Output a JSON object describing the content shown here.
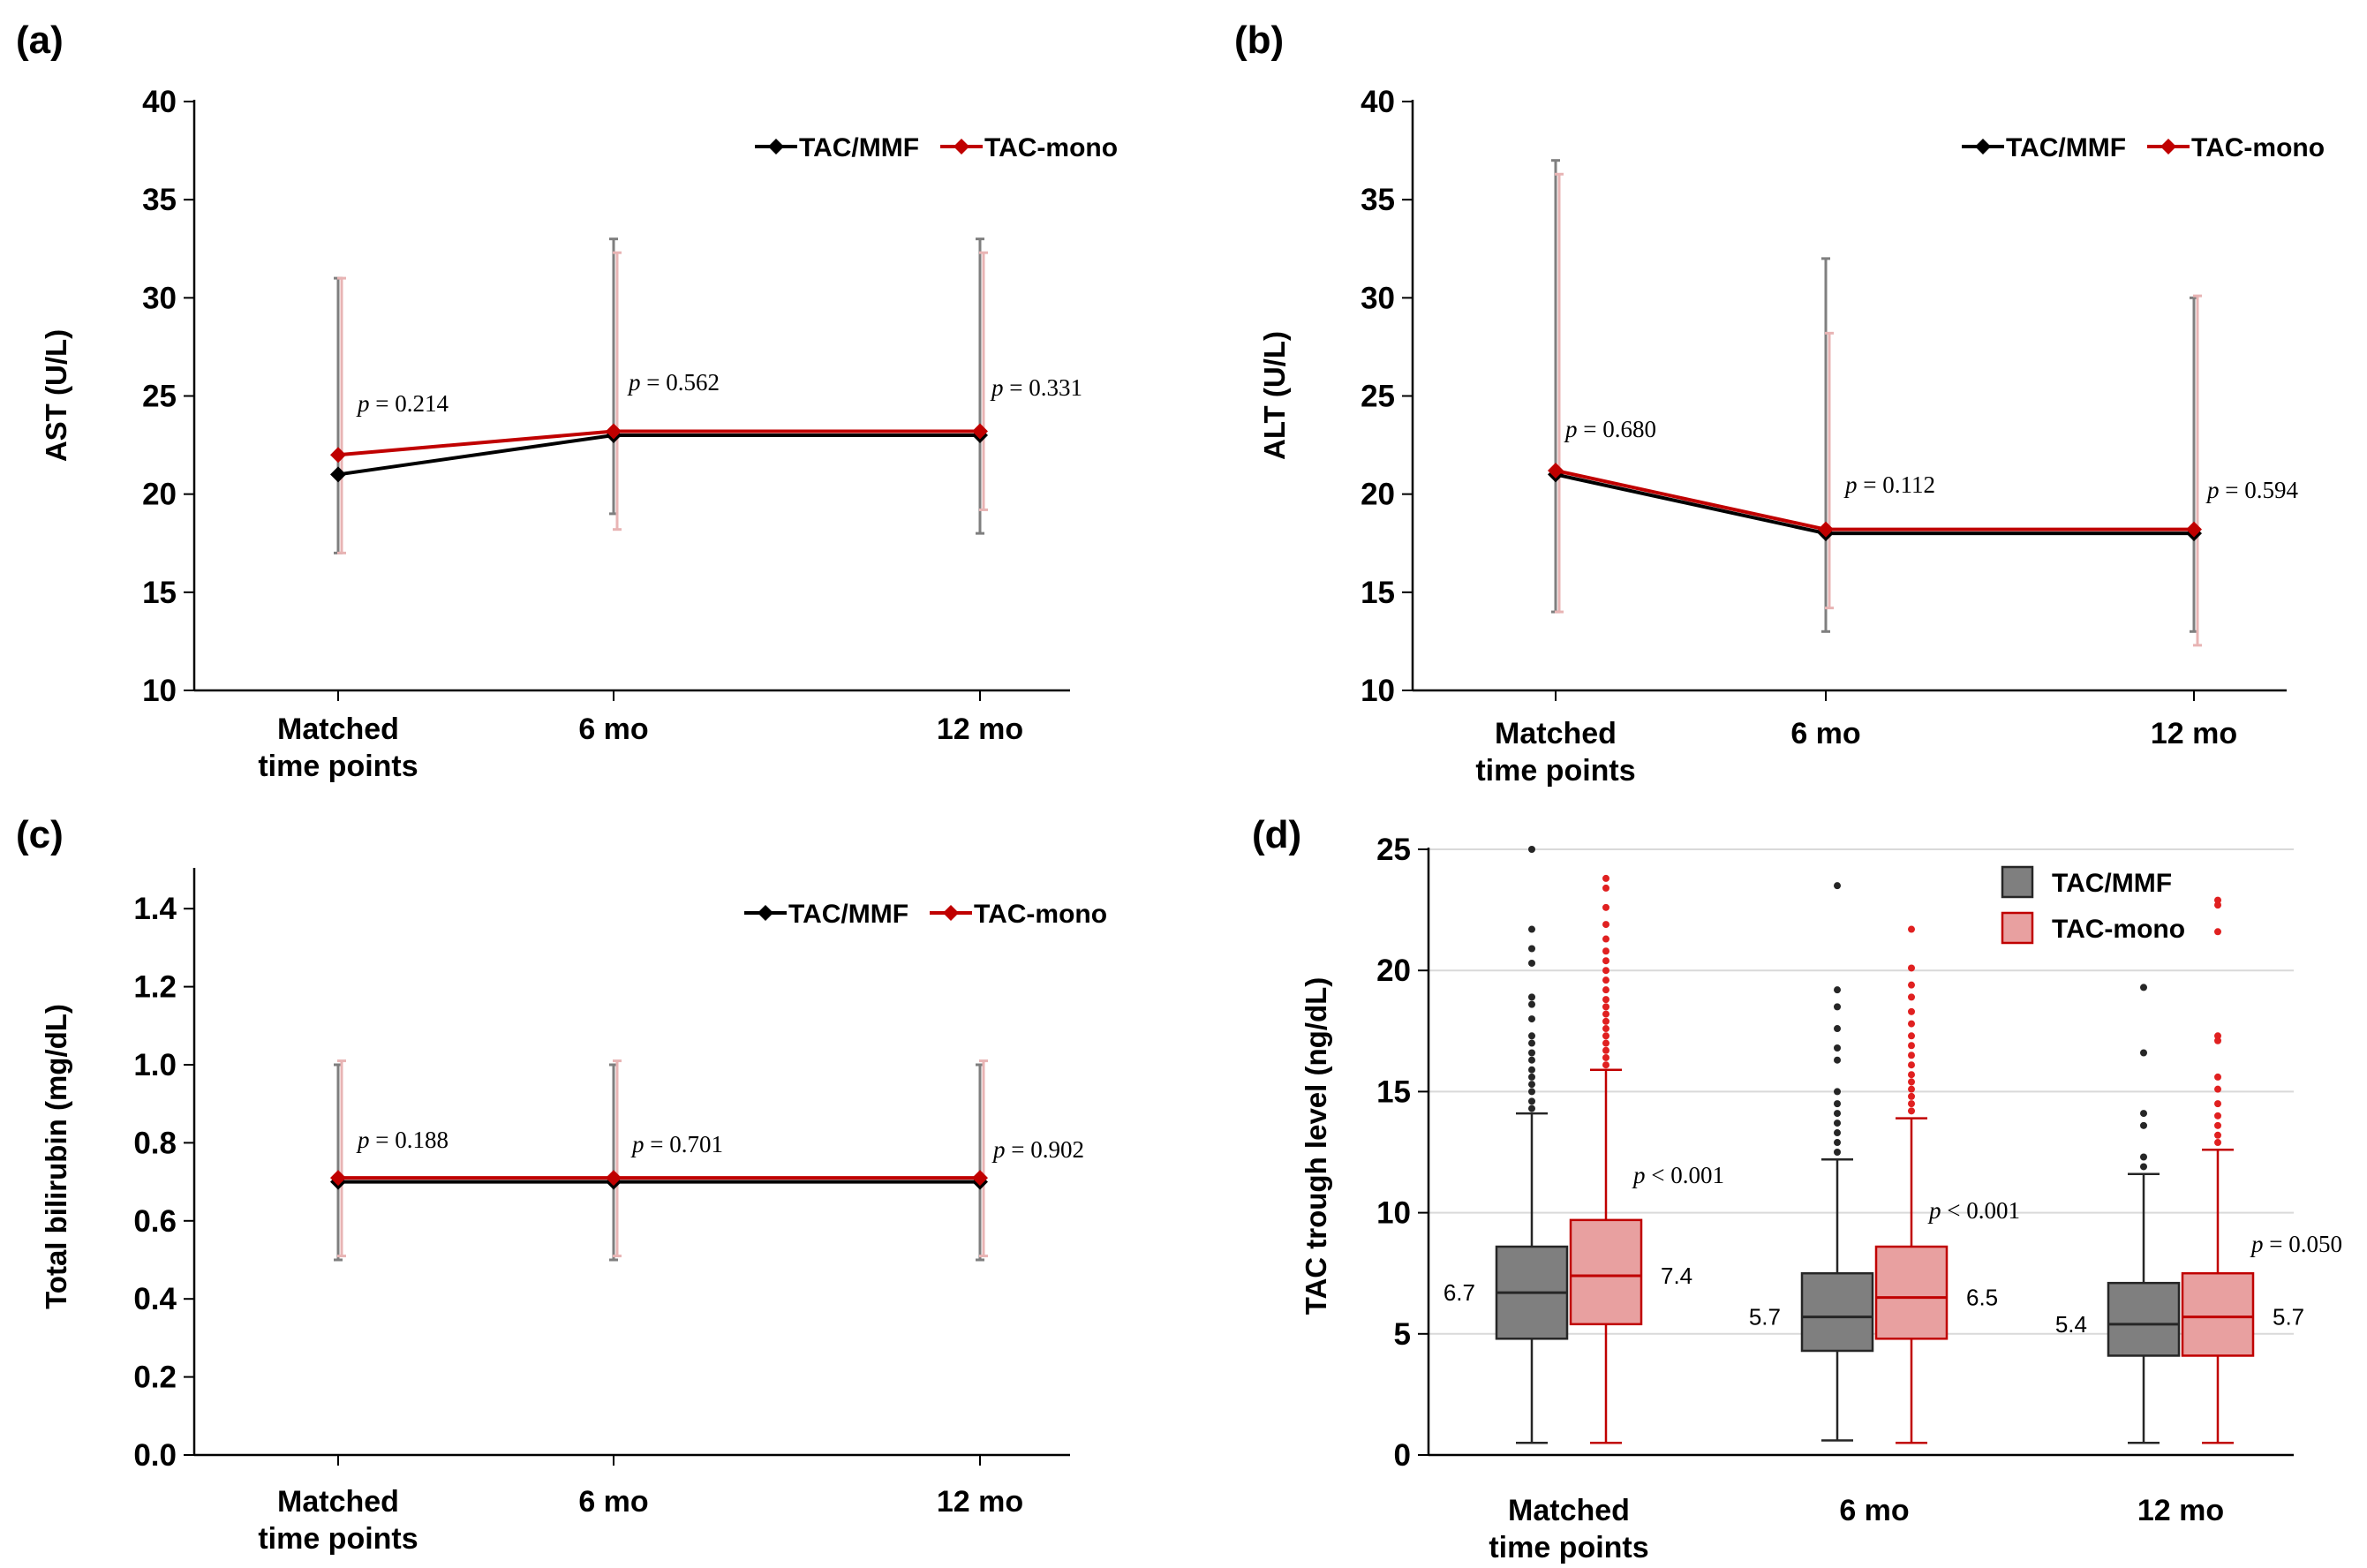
{
  "chart_data": [
    {
      "id": "a",
      "type": "line",
      "panel_label": "(a)",
      "ylabel": "AST (U/L)",
      "ylim": [
        10,
        40
      ],
      "yticks": [
        "10",
        "15",
        "20",
        "25",
        "30",
        "35",
        "40"
      ],
      "categories": [
        "Matched|time points",
        "6 mo",
        "12 mo"
      ],
      "series": [
        {
          "name": "TAC/MMF",
          "color": "#000000",
          "values": [
            21,
            23,
            23
          ],
          "err_low": [
            17,
            19,
            18
          ],
          "err_high": [
            31,
            33,
            33
          ]
        },
        {
          "name": "TAC-mono",
          "color": "#c00000",
          "values": [
            22,
            23.2,
            23.2
          ],
          "err_low": [
            17,
            18.2,
            19.2
          ],
          "err_high": [
            31,
            32.3,
            32.3
          ]
        }
      ],
      "p_values": [
        {
          "p": "p",
          "text": " = 0.214"
        },
        {
          "p": "p",
          "text": " = 0.562"
        },
        {
          "p": "p",
          "text": " = 0.331"
        }
      ]
    },
    {
      "id": "b",
      "type": "line",
      "panel_label": "(b)",
      "ylabel": "ALT (U/L)",
      "ylim": [
        10,
        40
      ],
      "yticks": [
        "10",
        "15",
        "20",
        "25",
        "30",
        "35",
        "40"
      ],
      "categories": [
        "Matched|time points",
        "6 mo",
        "12 mo"
      ],
      "series": [
        {
          "name": "TAC/MMF",
          "color": "#000000",
          "values": [
            21,
            18,
            18
          ],
          "err_low": [
            14,
            13,
            13
          ],
          "err_high": [
            37,
            32,
            30
          ]
        },
        {
          "name": "TAC-mono",
          "color": "#c00000",
          "values": [
            21.2,
            18.2,
            18.2
          ],
          "err_low": [
            14,
            14.2,
            12.3
          ],
          "err_high": [
            36.3,
            28.2,
            30.1
          ]
        }
      ],
      "p_values": [
        {
          "p": "p",
          "text": " = 0.680"
        },
        {
          "p": "p",
          "text": " = 0.112"
        },
        {
          "p": "p",
          "text": " = 0.594"
        }
      ]
    },
    {
      "id": "c",
      "type": "line",
      "panel_label": "(c)",
      "ylabel": "Total bilirubin (mg/dL)",
      "ylim": [
        0,
        1.5
      ],
      "yticks": [
        "0.0",
        "0.2",
        "0.4",
        "0.6",
        "0.8",
        "1.0",
        "1.2",
        "1.4"
      ],
      "categories": [
        "Matched|time points",
        "6 mo",
        "12 mo"
      ],
      "series": [
        {
          "name": "TAC/MMF",
          "color": "#000000",
          "values": [
            0.7,
            0.7,
            0.7
          ],
          "err_low": [
            0.5,
            0.5,
            0.5
          ],
          "err_high": [
            1.0,
            1.0,
            1.0
          ]
        },
        {
          "name": "TAC-mono",
          "color": "#c00000",
          "values": [
            0.71,
            0.71,
            0.71
          ],
          "err_low": [
            0.51,
            0.51,
            0.51
          ],
          "err_high": [
            1.01,
            1.01,
            1.01
          ]
        }
      ],
      "p_values": [
        {
          "p": "p",
          "text": " = 0.188"
        },
        {
          "p": "p",
          "text": " = 0.701"
        },
        {
          "p": "p",
          "text": " = 0.902"
        }
      ]
    },
    {
      "id": "d",
      "type": "box",
      "panel_label": "(d)",
      "ylabel": "TAC trough level (ng/dL)",
      "ylim": [
        0,
        25
      ],
      "yticks": [
        "0",
        "5",
        "10",
        "15",
        "20",
        "25"
      ],
      "categories": [
        "Matched|time points",
        "6 mo",
        "12 mo"
      ],
      "legend": [
        {
          "name": "TAC/MMF",
          "fill": "#7f7f7f",
          "stroke": "#262626"
        },
        {
          "name": "TAC-mono",
          "fill": "#e8a0a0",
          "stroke": "#c00000"
        }
      ],
      "groups": [
        {
          "p": "p",
          "p_text": " < 0.001",
          "mmf": {
            "min": 0.5,
            "q1": 4.8,
            "median": 6.7,
            "q3": 8.6,
            "max": 14.1,
            "median_label": "6.7",
            "outliers": [
              14.3,
              14.6,
              15.0,
              15.3,
              15.6,
              15.9,
              16.3,
              16.6,
              17.0,
              17.3,
              18.0,
              18.6,
              18.9,
              20.3,
              20.9,
              21.7,
              25
            ]
          },
          "mono": {
            "min": 0.5,
            "q1": 5.4,
            "median": 7.4,
            "q3": 9.7,
            "max": 15.9,
            "median_label": "7.4",
            "outliers": [
              16.1,
              16.4,
              16.7,
              17.0,
              17.3,
              17.6,
              17.9,
              18.2,
              18.5,
              18.8,
              19.2,
              19.6,
              20.0,
              20.4,
              20.8,
              21.3,
              21.9,
              22.6,
              23.4,
              23.8
            ]
          }
        },
        {
          "p": "p",
          "p_text": " < 0.001",
          "mmf": {
            "min": 0.6,
            "q1": 4.3,
            "median": 5.7,
            "q3": 7.5,
            "max": 12.2,
            "median_label": "5.7",
            "outliers": [
              12.5,
              12.9,
              13.3,
              13.7,
              14.1,
              14.5,
              15.0,
              16.3,
              16.8,
              17.6,
              18.5,
              19.2,
              23.5
            ]
          },
          "mono": {
            "min": 0.5,
            "q1": 4.8,
            "median": 6.5,
            "q3": 8.6,
            "max": 13.9,
            "median_label": "6.5",
            "outliers": [
              14.2,
              14.5,
              14.8,
              15.1,
              15.4,
              15.7,
              16.1,
              16.5,
              16.9,
              17.3,
              17.8,
              18.3,
              18.9,
              19.4,
              20.1,
              21.7
            ]
          }
        },
        {
          "p": "p",
          "p_text": " = 0.050",
          "mmf": {
            "min": 0.5,
            "q1": 4.1,
            "median": 5.4,
            "q3": 7.1,
            "max": 11.6,
            "median_label": "5.4",
            "outliers": [
              11.9,
              12.3,
              13.6,
              14.1,
              16.6,
              19.3
            ]
          },
          "mono": {
            "min": 0.5,
            "q1": 4.1,
            "median": 5.7,
            "q3": 7.5,
            "max": 12.6,
            "median_label": "5.7",
            "outliers": [
              12.9,
              13.2,
              13.6,
              14.0,
              14.5,
              15.1,
              15.6,
              17.1,
              17.3,
              21.6,
              22.7,
              22.9
            ]
          }
        }
      ]
    }
  ]
}
